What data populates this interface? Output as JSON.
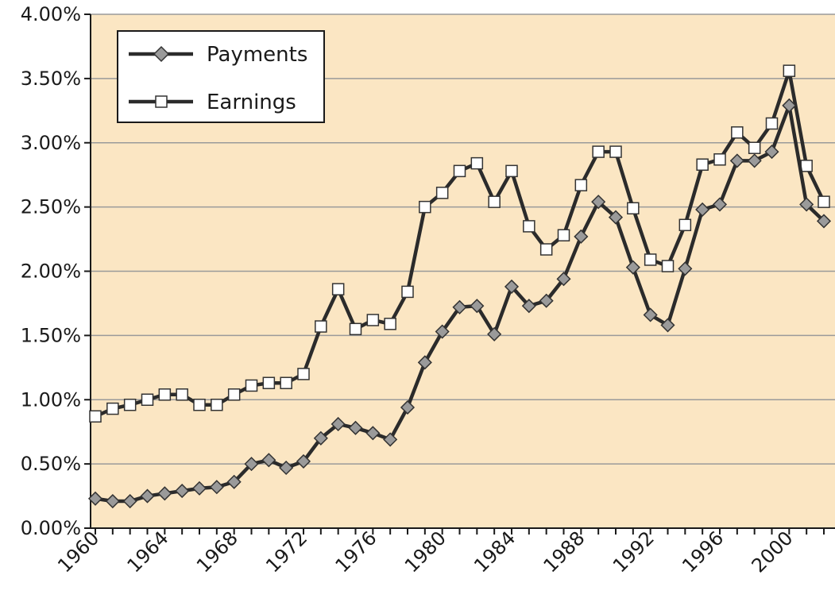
{
  "chart_data": {
    "type": "line",
    "title": "",
    "xlabel": "",
    "ylabel": "",
    "x": [
      1960,
      1961,
      1962,
      1963,
      1964,
      1965,
      1966,
      1967,
      1968,
      1969,
      1970,
      1971,
      1972,
      1973,
      1974,
      1975,
      1976,
      1977,
      1978,
      1979,
      1980,
      1981,
      1982,
      1983,
      1984,
      1985,
      1986,
      1987,
      1988,
      1989,
      1990,
      1991,
      1992,
      1993,
      1994,
      1995,
      1996,
      1997,
      1998,
      1999,
      2000,
      2001,
      2002
    ],
    "xticks": [
      "1960",
      "1964",
      "1968",
      "1972",
      "1976",
      "1980",
      "1984",
      "1988",
      "1992",
      "1996",
      "2000"
    ],
    "xlim": [
      1960,
      2002
    ],
    "yticks": [
      "0.00%",
      "0.50%",
      "1.00%",
      "1.50%",
      "2.00%",
      "2.50%",
      "3.00%",
      "3.50%",
      "4.00%"
    ],
    "ylim": [
      0,
      4
    ],
    "grid": "horizontal",
    "legend_position": "top-left",
    "background": "#fbe6c3",
    "line_color": "#2b2b2b",
    "series": [
      {
        "name": "Payments",
        "marker": "diamond",
        "marker_fill": "#9a9a9a",
        "values": [
          0.23,
          0.21,
          0.21,
          0.25,
          0.27,
          0.29,
          0.31,
          0.32,
          0.36,
          0.5,
          0.53,
          0.47,
          0.52,
          0.7,
          0.81,
          0.78,
          0.74,
          0.69,
          0.94,
          1.29,
          1.53,
          1.72,
          1.73,
          1.51,
          1.88,
          1.73,
          1.77,
          1.94,
          2.27,
          2.54,
          2.42,
          2.03,
          1.66,
          1.58,
          2.02,
          2.48,
          2.52,
          2.86,
          2.86,
          2.93,
          3.29,
          2.52,
          2.39
        ]
      },
      {
        "name": "Earnings",
        "marker": "square",
        "marker_fill": "#ffffff",
        "values": [
          0.87,
          0.93,
          0.96,
          1.0,
          1.04,
          1.04,
          0.96,
          0.96,
          1.04,
          1.11,
          1.13,
          1.13,
          1.2,
          1.57,
          1.86,
          1.55,
          1.62,
          1.59,
          1.84,
          2.5,
          2.61,
          2.78,
          2.84,
          2.54,
          2.78,
          2.35,
          2.17,
          2.28,
          2.67,
          2.93,
          2.93,
          2.49,
          2.09,
          2.04,
          2.36,
          2.83,
          2.87,
          3.08,
          2.96,
          3.15,
          3.56,
          2.82,
          2.54
        ]
      }
    ]
  }
}
